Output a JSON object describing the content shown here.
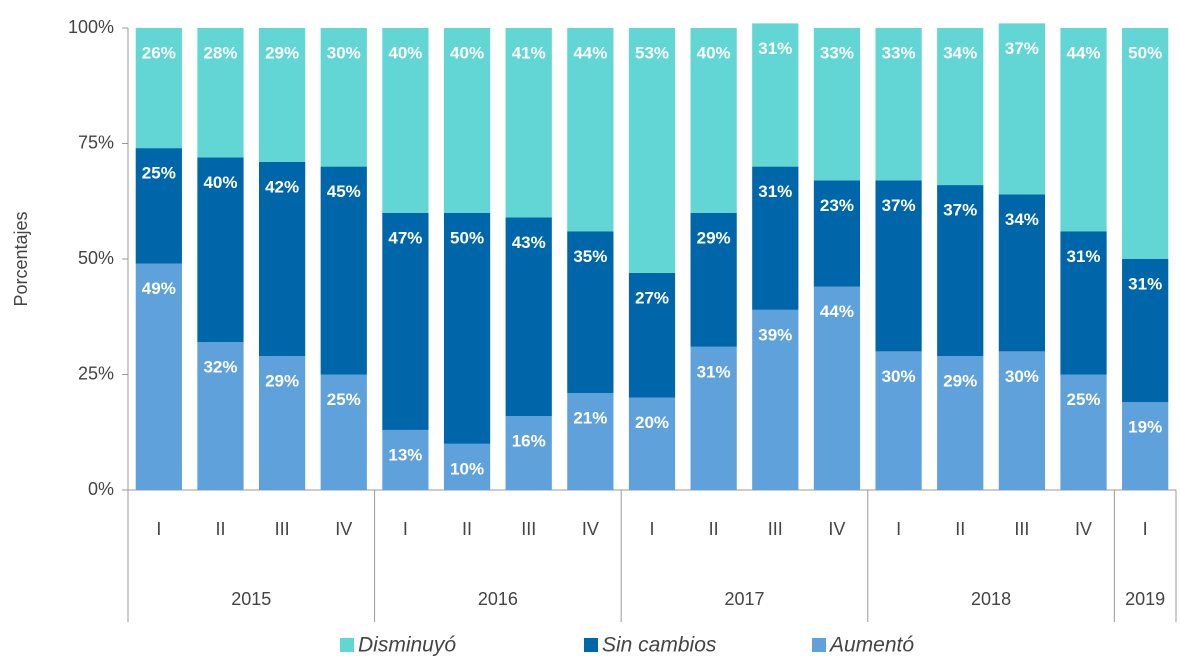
{
  "chart_data": {
    "type": "stacked_bar",
    "y_axis_label": "Porcentajes",
    "category_groups": [
      {
        "label": "2015",
        "categories": [
          "I",
          "II",
          "III",
          "IV"
        ]
      },
      {
        "label": "2016",
        "categories": [
          "I",
          "II",
          "III",
          "IV"
        ]
      },
      {
        "label": "2017",
        "categories": [
          "I",
          "II",
          "III",
          "IV"
        ]
      },
      {
        "label": "2018",
        "categories": [
          "I",
          "II",
          "III",
          "IV"
        ]
      },
      {
        "label": "2019",
        "categories": [
          "I"
        ]
      }
    ],
    "series": [
      {
        "name": "Aumentó",
        "color": "#5fa2db",
        "values": [
          49,
          32,
          29,
          25,
          13,
          10,
          16,
          21,
          20,
          31,
          39,
          44,
          30,
          29,
          30,
          25,
          19
        ],
        "value_labels": [
          "49%",
          "32%",
          "29%",
          "25%",
          "13%",
          "10%",
          "16%",
          "21%",
          "20%",
          "31%",
          "39%",
          "44%",
          "30%",
          "29%",
          "30%",
          "25%",
          "19%"
        ]
      },
      {
        "name": "Sin cambios",
        "color": "#0066aa",
        "values": [
          25,
          40,
          42,
          45,
          47,
          50,
          43,
          35,
          27,
          29,
          31,
          23,
          37,
          37,
          34,
          31,
          31
        ],
        "value_labels": [
          "25%",
          "40%",
          "42%",
          "45%",
          "47%",
          "50%",
          "43%",
          "35%",
          "27%",
          "29%",
          "31%",
          "23%",
          "37%",
          "37%",
          "34%",
          "31%",
          "31%"
        ]
      },
      {
        "name": "Disminuyó",
        "color": "#62d5d5",
        "values": [
          26,
          28,
          29,
          30,
          40,
          40,
          41,
          44,
          53,
          40,
          31,
          33,
          33,
          34,
          37,
          44,
          50
        ],
        "value_labels": [
          "26%",
          "28%",
          "29%",
          "30%",
          "40%",
          "40%",
          "41%",
          "44%",
          "53%",
          "40%",
          "31%",
          "33%",
          "33%",
          "34%",
          "37%",
          "44%",
          "50%"
        ]
      }
    ],
    "ylim": [
      0,
      100
    ],
    "yticks": [
      {
        "value": 0,
        "label": "0%"
      },
      {
        "value": 25,
        "label": "25%"
      },
      {
        "value": 50,
        "label": "50%"
      },
      {
        "value": 75,
        "label": "75%"
      },
      {
        "value": 100,
        "label": "100%"
      }
    ],
    "legend_position": "bottom"
  }
}
